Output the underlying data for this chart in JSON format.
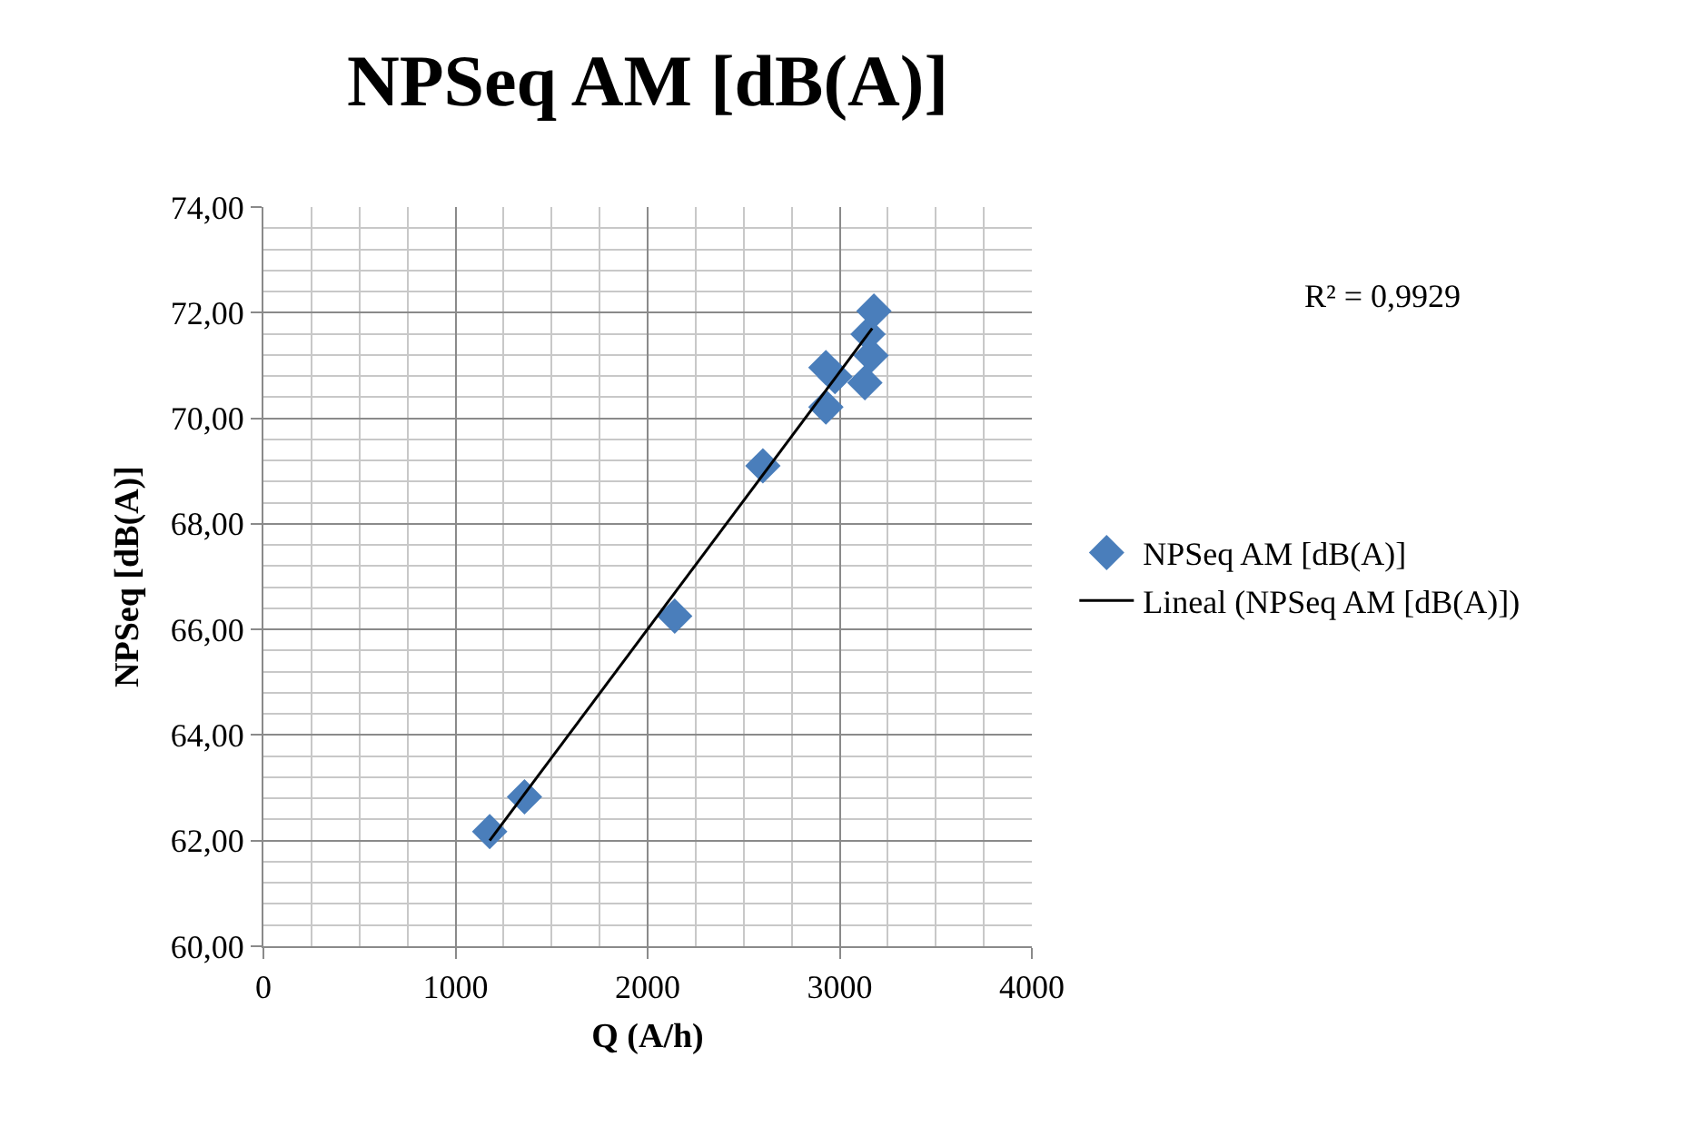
{
  "chart_data": {
    "type": "scatter",
    "title": "NPSeq AM [dB(A)]",
    "xlabel": "Q (A/h)",
    "ylabel": "NPSeq [dB(A)]",
    "xlim": [
      0,
      4000
    ],
    "xticks": [
      0,
      1000,
      2000,
      3000,
      4000
    ],
    "ylim": [
      60,
      74
    ],
    "yticks": [
      {
        "value": 60,
        "label": "60,00"
      },
      {
        "value": 62,
        "label": "62,00"
      },
      {
        "value": 64,
        "label": "64,00"
      },
      {
        "value": 66,
        "label": "66,00"
      },
      {
        "value": 68,
        "label": "68,00"
      },
      {
        "value": 70,
        "label": "70,00"
      },
      {
        "value": 72,
        "label": "72,00"
      },
      {
        "value": 74,
        "label": "74,00"
      }
    ],
    "grid": true,
    "legend": "right",
    "marker": "diamond",
    "annotations": [
      "R² = 0,9929"
    ],
    "series": [
      {
        "name": "NPSeq AM [dB(A)]",
        "color": "#4a7ebb",
        "x": [
          1178,
          1359,
          2141,
          2600,
          2928,
          2928,
          2975,
          3131,
          3163,
          3147,
          3178
        ],
        "values": [
          62.17,
          62.83,
          66.25,
          69.1,
          70.21,
          70.96,
          70.79,
          70.67,
          71.19,
          71.59,
          72.03
        ]
      },
      {
        "name": "Lineal (NPSeq AM [dB(A)])",
        "type": "line",
        "color": "#000000",
        "marker": "none",
        "line_style": "solid",
        "x": [
          1178,
          3169
        ],
        "values": [
          62.0,
          71.7
        ]
      }
    ]
  }
}
